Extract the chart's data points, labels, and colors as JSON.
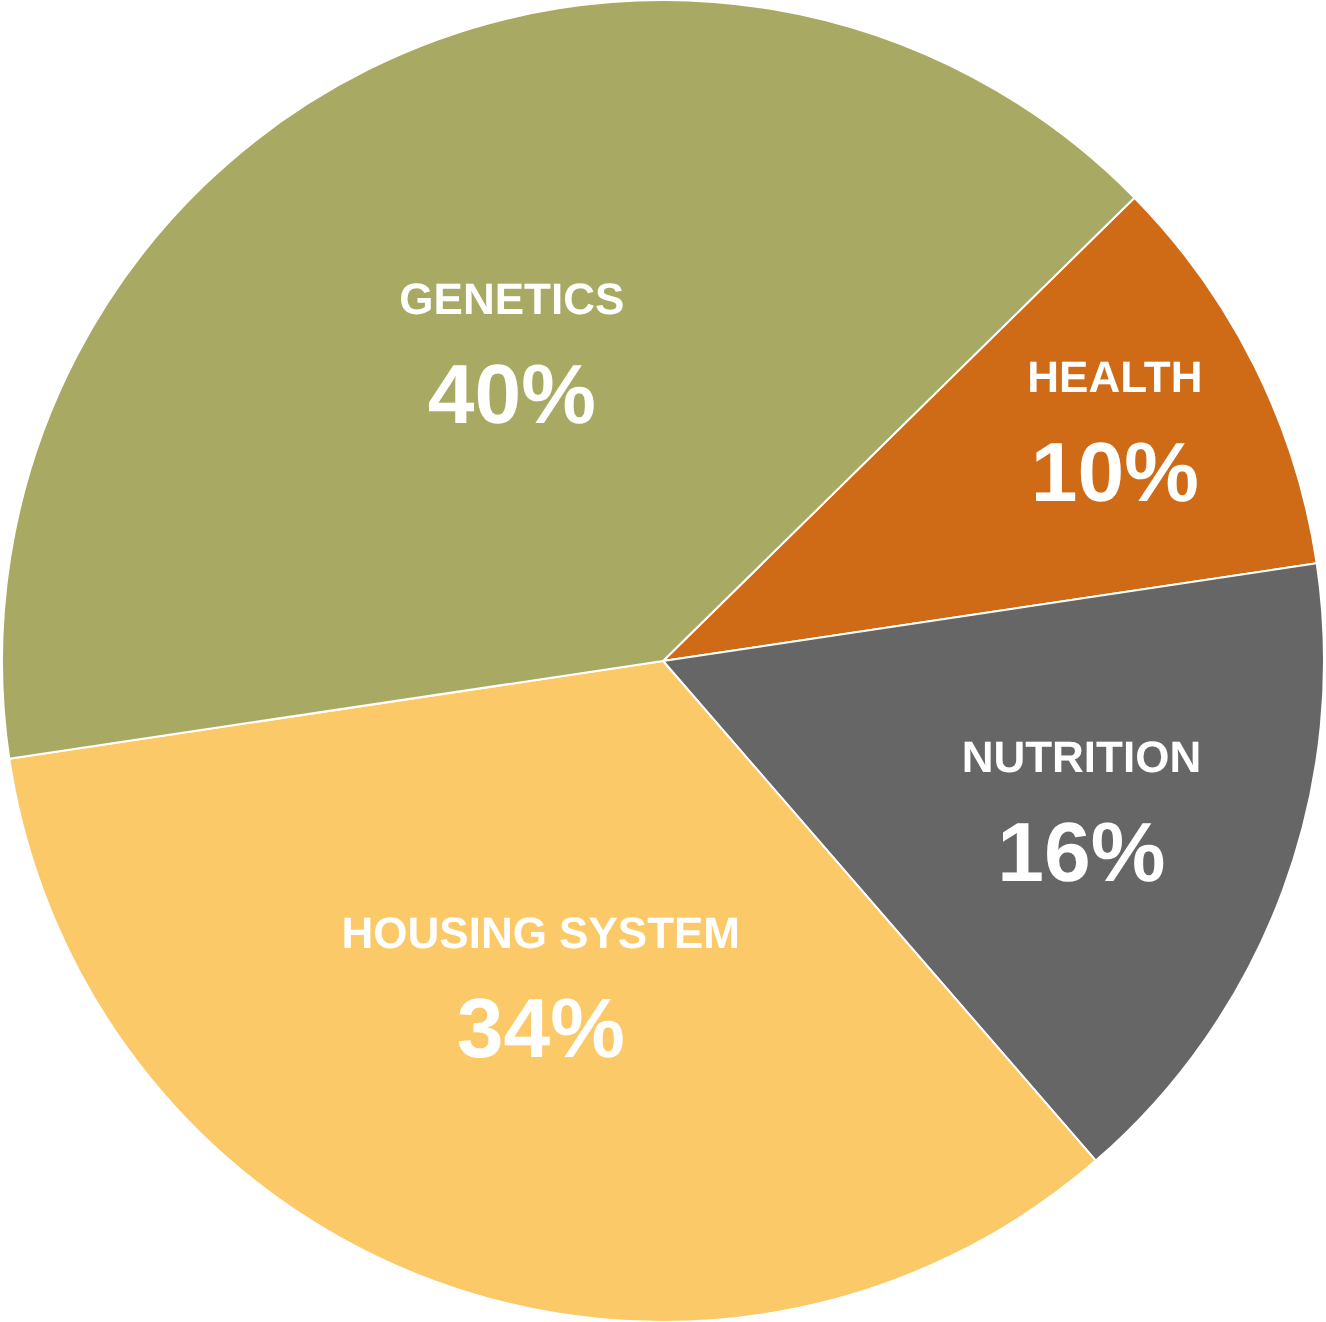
{
  "chart_data": {
    "type": "pie",
    "categories": [
      "HEALTH",
      "NUTRITION",
      "HOUSING SYSTEM",
      "GENETICS"
    ],
    "values": [
      10,
      16,
      34,
      40
    ],
    "value_labels": [
      "10%",
      "16%",
      "34%",
      "40%"
    ],
    "colors": [
      "#cf6a16",
      "#666666",
      "#fcc969",
      "#a8a962"
    ],
    "legend": false
  }
}
